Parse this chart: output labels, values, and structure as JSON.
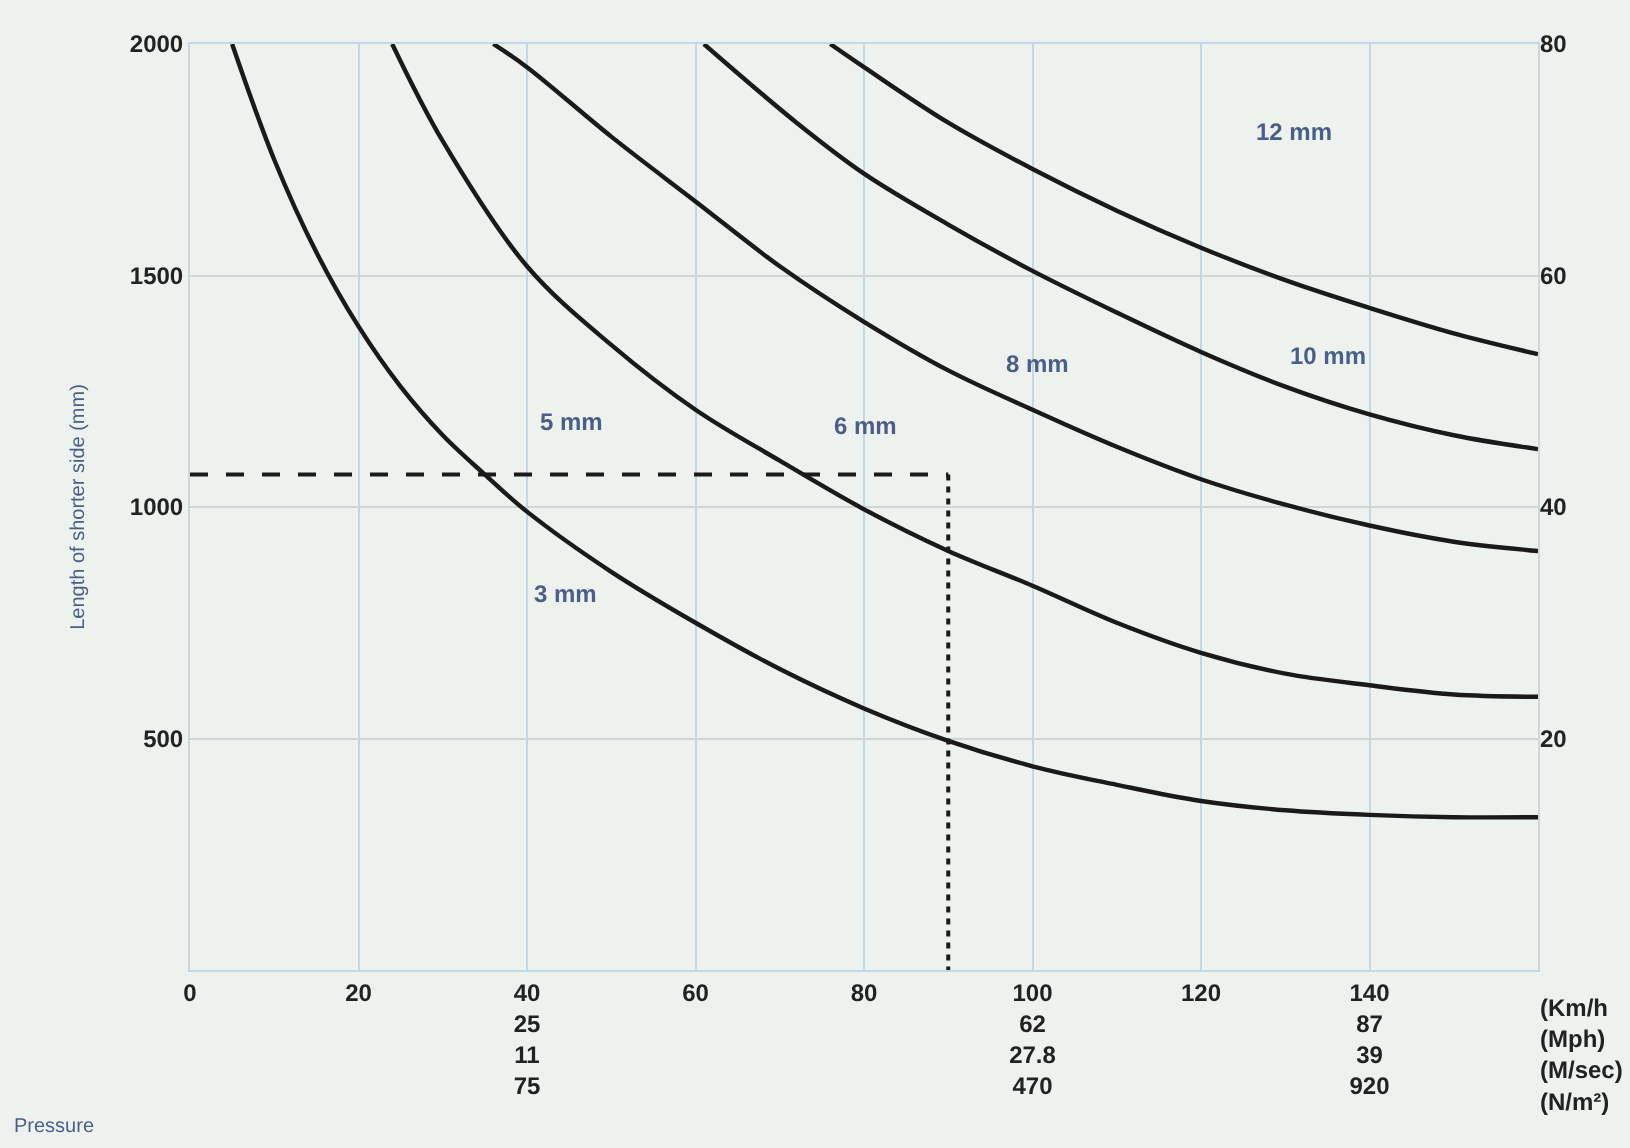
{
  "chart_data": {
    "type": "line",
    "ylabel": "Length of shorter side (mm)",
    "xlim": [
      0,
      160
    ],
    "xticks": [
      0,
      20,
      {
        "value": 40,
        "label": "40\n25\n11\n75"
      },
      60,
      80,
      {
        "value": 100,
        "label": "100\n62\n27.8\n470"
      },
      120,
      {
        "value": 140,
        "label": "140\n87\n39\n920"
      }
    ],
    "ylim": [
      0,
      2000
    ],
    "yticks": [
      500,
      1000,
      1500,
      2000
    ],
    "y2lim": [
      0,
      80
    ],
    "y2ticks": [
      20,
      40,
      60,
      80
    ],
    "grid": true,
    "marker": "none",
    "series": [
      {
        "color": "#1a1a1a",
        "x": [
          5,
          10,
          15,
          20,
          25,
          30,
          35,
          40,
          50,
          60,
          70,
          80,
          90,
          100,
          110,
          120,
          130,
          140,
          150,
          160
        ],
        "values": [
          2000,
          1750,
          1550,
          1390,
          1260,
          1155,
          1070,
          990,
          860,
          750,
          650,
          565,
          495,
          440,
          400,
          365,
          345,
          335,
          330,
          330
        ]
      },
      {
        "color": "#1a1a1a",
        "x": [
          24,
          30,
          40,
          50,
          60,
          70,
          80,
          90,
          100,
          110,
          120,
          130,
          140,
          150,
          160
        ],
        "values": [
          2000,
          1790,
          1520,
          1350,
          1210,
          1100,
          995,
          905,
          830,
          750,
          685,
          640,
          615,
          595,
          590
        ]
      },
      {
        "color": "#1a1a1a",
        "x": [
          36,
          40,
          50,
          60,
          70,
          80,
          90,
          100,
          110,
          120,
          130,
          140,
          150,
          160
        ],
        "values": [
          2000,
          1950,
          1800,
          1660,
          1520,
          1400,
          1295,
          1210,
          1130,
          1060,
          1005,
          960,
          925,
          905
        ]
      },
      {
        "color": "#1a1a1a",
        "x": [
          61,
          72,
          80,
          90,
          100,
          110,
          120,
          130,
          140,
          150,
          160
        ],
        "values": [
          2000,
          1830,
          1720,
          1610,
          1510,
          1420,
          1335,
          1260,
          1200,
          1155,
          1125
        ]
      },
      {
        "color": "#1a1a1a",
        "x": [
          76,
          80,
          90,
          100,
          110,
          120,
          130,
          140,
          150,
          160
        ],
        "values": [
          2000,
          1950,
          1830,
          1730,
          1640,
          1560,
          1490,
          1430,
          1375,
          1330
        ]
      },
      {
        "color": "#1a1a1a",
        "line_style": "dashed",
        "x": [
          0,
          90
        ],
        "values": [
          1070,
          1070
        ]
      },
      {
        "color": "#1a1a1a",
        "line_style": "dotted",
        "x": [
          90,
          90
        ],
        "values": [
          1070,
          0
        ]
      }
    ],
    "annotations": [
      "(Km/h\n(Mph)\n(M/sec)\n(N/m²)",
      "Pressure",
      "3 mm",
      "5 mm",
      "6 mm",
      "8 mm",
      "10 mm",
      "12 mm"
    ]
  }
}
